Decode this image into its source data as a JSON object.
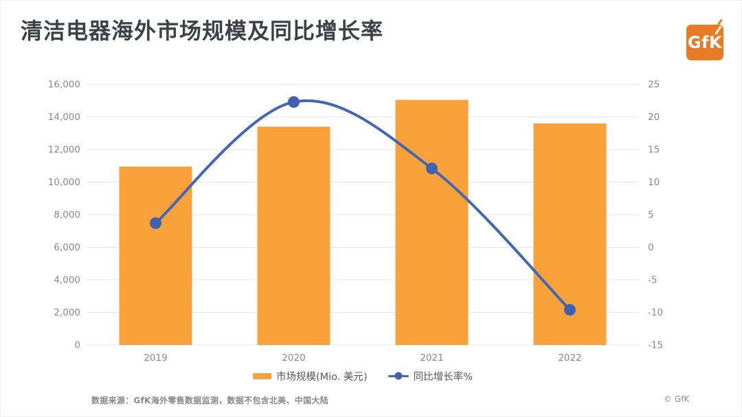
{
  "page": {
    "title": "清洁电器海外市场规模及同比增长率"
  },
  "logo": {
    "text": "GfK",
    "color": "#E87B25"
  },
  "chart_data": {
    "type": "combo-bar-line",
    "title": "清洁电器海外市场规模及同比增长率",
    "categories": [
      "2019",
      "2020",
      "2021",
      "2022"
    ],
    "series": [
      {
        "name": "市场规模(Mio. 美元)",
        "type": "bar",
        "axis": "left",
        "color": "#F9A23C",
        "values": [
          10950,
          13400,
          15050,
          13600
        ]
      },
      {
        "name": "同比增长率%",
        "type": "line",
        "axis": "right",
        "color": "#4168B1",
        "marker_color": "#3E62B0",
        "values": [
          3.7,
          22.3,
          12.1,
          -9.6
        ]
      }
    ],
    "left_axis": {
      "min": 0,
      "max": 16000,
      "step": 2000
    },
    "right_axis": {
      "min": -15,
      "max": 25,
      "step": 5
    },
    "grid": true,
    "grid_color": "#E4E5E8",
    "legend_position": "bottom"
  },
  "footer": {
    "source": "数据来源：GfK海外零售数据监测，数据不包含北美、中国大陆",
    "copyright": "© GfK"
  }
}
